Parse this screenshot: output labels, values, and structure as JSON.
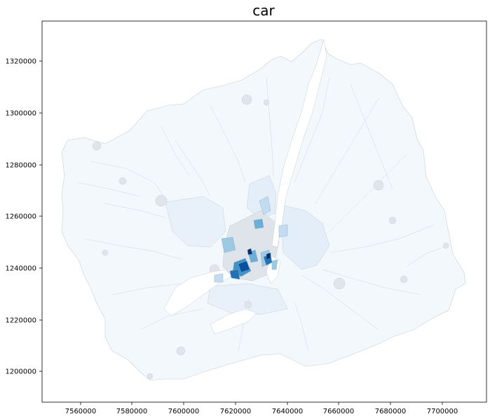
{
  "title": "car",
  "axes": {
    "x_ticks": [
      "7560000",
      "7580000",
      "7600000",
      "7620000",
      "7640000",
      "7660000",
      "7680000",
      "7700000"
    ],
    "y_ticks": [
      "1200000",
      "1220000",
      "1240000",
      "1260000",
      "1280000",
      "1300000",
      "1320000"
    ]
  },
  "colors": {
    "background": "#ffffff",
    "region_fill": "#f3f8fd",
    "region_fill_mid": "#e4eef9",
    "region_edge": "#c7cfd8",
    "hotspot_light": "#9cc6e2",
    "hotspot_mid": "#4a90c8",
    "hotspot_dark": "#08519c",
    "river": "#ffffff"
  },
  "chart_data": {
    "type": "choropleth",
    "title": "car",
    "xlabel": "",
    "ylabel": "",
    "xlim": [
      7544000,
      7716000
    ],
    "ylim": [
      1187500,
      1336000
    ],
    "x_ticks": [
      7560000,
      7580000,
      7600000,
      7620000,
      7640000,
      7660000,
      7680000,
      7700000
    ],
    "y_ticks": [
      1200000,
      1220000,
      1240000,
      1260000,
      1280000,
      1300000,
      1320000
    ],
    "colormap": "Blues",
    "grid": false,
    "legend": "none"
  }
}
